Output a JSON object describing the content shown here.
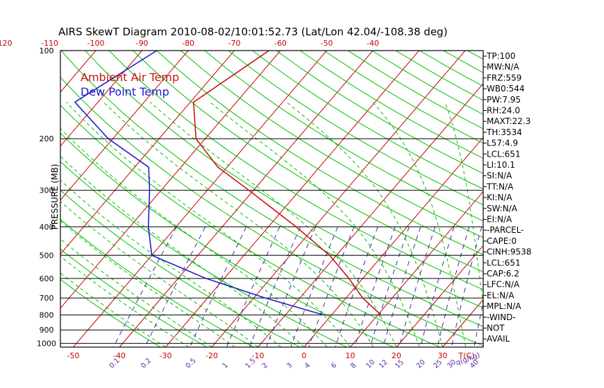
{
  "chart_data": {
    "type": "line",
    "title": "AIRS SkewT Diagram 2010-08-02/10:01:52.73 (Lat/Lon 42.04/-108.38 deg)",
    "ylabel": "PRESSURE (MB)",
    "y_scale": "log",
    "ylim": [
      1030,
      100
    ],
    "y_ticks": [
      100,
      200,
      300,
      400,
      500,
      600,
      700,
      800,
      900,
      1000
    ],
    "x_bottom_ticks": [
      -50,
      -40,
      -30,
      -20,
      -10,
      0,
      10,
      20,
      30
    ],
    "x_bottom_unit": "T(C)",
    "x_top_ticks": [
      -120,
      -110,
      -100,
      -90,
      -80,
      -70,
      -60,
      -50,
      -40
    ],
    "mixing_ratio_labels": [
      "0.1",
      "0.2",
      "0.5",
      "1",
      "1.5",
      "2",
      "3",
      "4",
      "6",
      "8",
      "10",
      "12",
      "15",
      "20",
      "25",
      "30",
      "40"
    ],
    "mixing_ratio_unit": "q(g/kg)",
    "grid": true,
    "legend_position": "top-left",
    "colors": {
      "isotherm": "#c80000",
      "dry_adiabat": "#00c000",
      "moist_adiabat": "#00c000",
      "mixing_ratio": "#3c28a0",
      "temperature": "#c81414",
      "dewpoint": "#1e1ec8",
      "frame": "#000000",
      "tick_label": "#c80000"
    },
    "series": [
      {
        "name": "Ambient Air Temp",
        "color": "#c81414",
        "points": [
          {
            "p": 100,
            "t": -62.5
          },
          {
            "p": 150,
            "t": -69.3
          },
          {
            "p": 200,
            "t": -62.0
          },
          {
            "p": 250,
            "t": -52.0
          },
          {
            "p": 300,
            "t": -41.0
          },
          {
            "p": 400,
            "t": -24.0
          },
          {
            "p": 500,
            "t": -11.5
          },
          {
            "p": 600,
            "t": -3.0
          },
          {
            "p": 700,
            "t": 3.6
          },
          {
            "p": 800,
            "t": 10.7
          }
        ]
      },
      {
        "name": "Dew Point Temp",
        "color": "#1e1ec8",
        "points": [
          {
            "p": 100,
            "t": -86.8
          },
          {
            "p": 150,
            "t": -95.0
          },
          {
            "p": 200,
            "t": -81.0
          },
          {
            "p": 250,
            "t": -67.0
          },
          {
            "p": 300,
            "t": -62.5
          },
          {
            "p": 400,
            "t": -56.0
          },
          {
            "p": 500,
            "t": -50.0
          },
          {
            "p": 600,
            "t": -34.0
          },
          {
            "p": 700,
            "t": -17.5
          },
          {
            "p": 800,
            "t": -1.7
          }
        ]
      }
    ],
    "indices": [
      "TP:100",
      "MW:N/A",
      "FRZ:559",
      "WB0:544",
      "PW:7.95",
      "RH:24.0",
      "MAXT:22.3",
      "TH:3534",
      "L57:4.9",
      "LCL:651",
      "LI:10.1",
      "SI:N/A",
      "TT:N/A",
      "KI:N/A",
      "SW:N/A",
      "EI:N/A",
      "-PARCEL-",
      "CAPE:0",
      "CINH:9538",
      "LCL:651",
      "CAP:6.2",
      "LFC:N/A",
      "EL:N/A",
      "MPL:N/A",
      "-WIND-",
      "NOT",
      "AVAIL"
    ]
  }
}
